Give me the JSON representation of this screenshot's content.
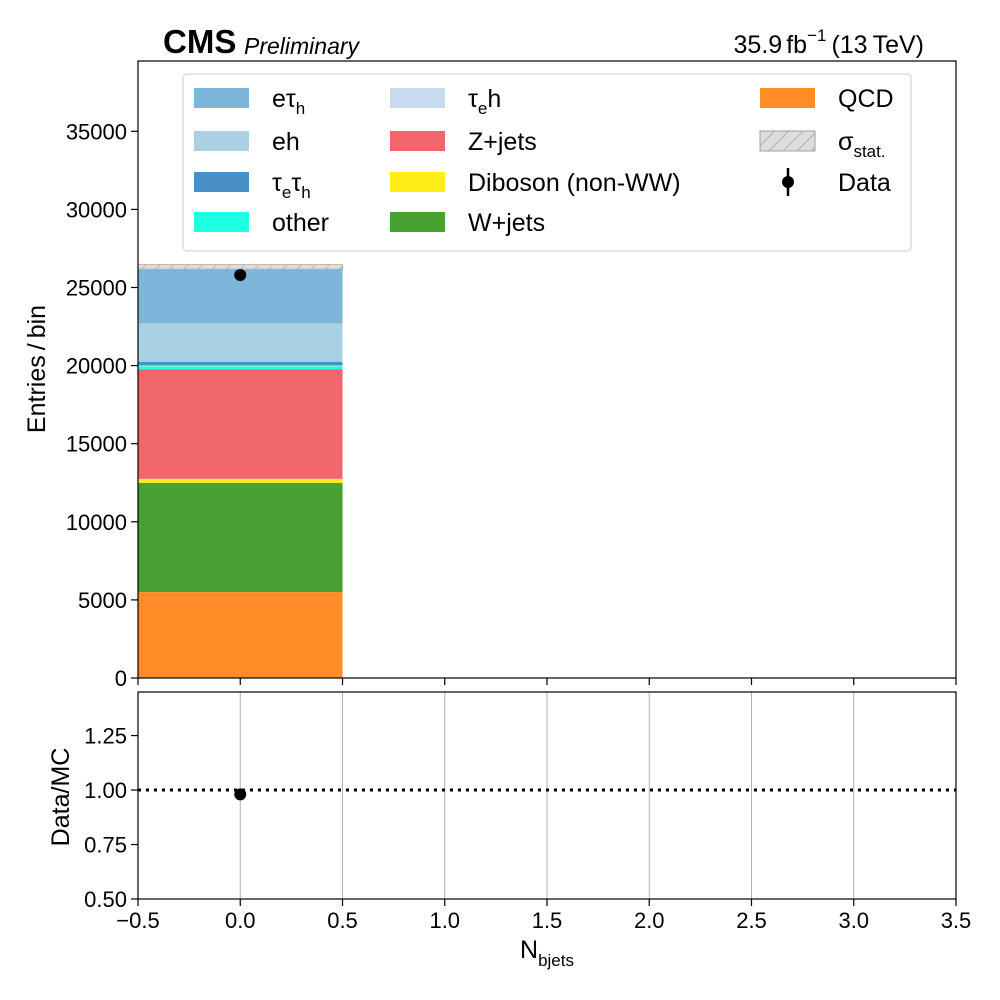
{
  "header": {
    "experiment": "CMS",
    "status": "Preliminary",
    "lumi_value": "35.9",
    "lumi_unit": "fb",
    "lumi_exponent": "−1",
    "energy": "(13 TeV)"
  },
  "colors": {
    "data_marker": "#000000",
    "grid": "#b0b0b0",
    "hatch": "#a0a0a0",
    "hatch_fill": "#dddddd"
  },
  "chart_data": [
    {
      "type": "bar",
      "stacked": true,
      "panel": "main",
      "ylabel": "Entries / bin",
      "xlim": [
        -0.5,
        3.5
      ],
      "ylim": [
        0,
        39500
      ],
      "yticks": [
        0,
        5000,
        10000,
        15000,
        20000,
        25000,
        30000,
        35000
      ],
      "ytick_labels": [
        "0",
        "5000",
        "10000",
        "15000",
        "20000",
        "25000",
        "30000",
        "35000"
      ],
      "xticks": [
        -0.5,
        0.0,
        0.5,
        1.0,
        1.5,
        2.0,
        2.5,
        3.0,
        3.5
      ],
      "bins": [
        [
          -0.5,
          0.5
        ]
      ],
      "series": [
        {
          "key": "qcd",
          "name": "QCD",
          "color": "#ff8c27",
          "values": [
            5500
          ]
        },
        {
          "key": "wjets",
          "name": "W+jets",
          "color": "#48a131",
          "values": [
            7000
          ]
        },
        {
          "key": "diboson",
          "name": "Diboson (non-WW)",
          "color": "#ffee1a",
          "values": [
            250
          ]
        },
        {
          "key": "zjets",
          "name": "Z+jets",
          "color": "#f0666a",
          "values": [
            7000
          ]
        },
        {
          "key": "other",
          "name": "other",
          "color": "#1cffe0",
          "values": [
            200
          ]
        },
        {
          "key": "taueh",
          "name": "τe h",
          "color": "#c6dbef",
          "values": [
            60
          ]
        },
        {
          "key": "tauetauh",
          "name": "τe τh",
          "color": "#4891c7",
          "values": [
            240
          ]
        },
        {
          "key": "eh",
          "name": "eh",
          "color": "#a9d0e3",
          "values": [
            2450
          ]
        },
        {
          "key": "etauh",
          "name": "eτh",
          "color": "#7db6db",
          "values": [
            3600
          ]
        }
      ],
      "stat_uncertainty": {
        "name": "σstat.",
        "values": [
          160
        ]
      },
      "data": {
        "name": "Data",
        "x": [
          0.0
        ],
        "y": [
          25800
        ],
        "yerr": [
          160
        ]
      },
      "legend_position": "top"
    },
    {
      "type": "scatter",
      "panel": "ratio",
      "ylabel": "Data/MC",
      "xlabel": "Nbjets",
      "xlim": [
        -0.5,
        3.5
      ],
      "ylim": [
        0.5,
        1.45
      ],
      "yticks": [
        0.5,
        0.75,
        1.0,
        1.25
      ],
      "ytick_labels": [
        "0.50",
        "0.75",
        "1.00",
        "1.25"
      ],
      "xticks": [
        -0.5,
        0.0,
        0.5,
        1.0,
        1.5,
        2.0,
        2.5,
        3.0,
        3.5
      ],
      "xtick_labels": [
        "−0.5",
        "0.0",
        "0.5",
        "1.0",
        "1.5",
        "2.0",
        "2.5",
        "3.0",
        "3.5"
      ],
      "x": [
        0.0
      ],
      "y": [
        0.98
      ],
      "reference_line": 1.0,
      "grid": "x"
    }
  ],
  "legend": {
    "col1": [
      {
        "key": "etauh",
        "base": "eτ",
        "sub": "h",
        "sub2": "",
        "tail": ""
      },
      {
        "key": "eh",
        "base": "eh",
        "sub": "",
        "sub2": "",
        "tail": ""
      },
      {
        "key": "tauetauh",
        "base": "τ",
        "sub": "e",
        "mid": "τ",
        "sub2": "h",
        "tail": ""
      },
      {
        "key": "other",
        "base": "other",
        "sub": "",
        "sub2": "",
        "tail": ""
      }
    ],
    "col2": [
      {
        "key": "taueh",
        "base": "τ",
        "sub": "e",
        "tail": "h"
      },
      {
        "key": "zjets",
        "base": "Z+jets",
        "sub": "",
        "tail": ""
      },
      {
        "key": "diboson",
        "base": "Diboson (non-WW)",
        "sub": "",
        "tail": ""
      },
      {
        "key": "wjets",
        "base": "W+jets",
        "sub": "",
        "tail": ""
      }
    ],
    "col3": [
      {
        "key": "qcd",
        "base": "QCD",
        "sub": "",
        "kind": "patch"
      },
      {
        "key": "stat",
        "base": "σ",
        "sub": "stat.",
        "kind": "hatch"
      },
      {
        "key": "data",
        "base": "Data",
        "sub": "",
        "kind": "marker"
      }
    ]
  },
  "axis_labels": {
    "main_y": "Entries / bin",
    "ratio_y": "Data/MC",
    "x_base": "N",
    "x_sub": "bjets"
  }
}
